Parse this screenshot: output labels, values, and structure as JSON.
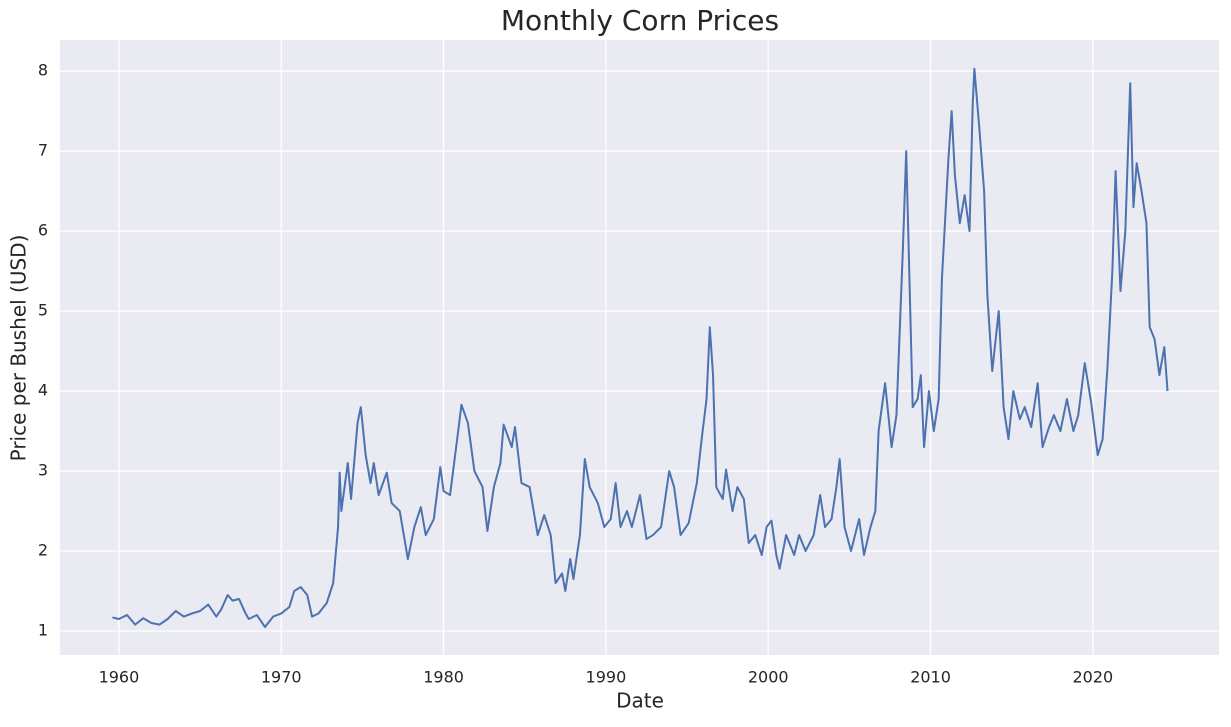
{
  "chart_data": {
    "type": "line",
    "title": "Monthly Corn Prices",
    "x_label": "Date",
    "y_label": "Price per Bushel (USD)",
    "x": [
      1959.6,
      1960,
      1960.5,
      1961,
      1961.5,
      1962,
      1962.5,
      1963,
      1963.5,
      1964,
      1964.5,
      1965,
      1965.5,
      1966,
      1966.3,
      1966.7,
      1967,
      1967.4,
      1967.8,
      1968,
      1968.5,
      1969,
      1969.5,
      1970,
      1970.5,
      1970.8,
      1971.2,
      1971.6,
      1971.9,
      1972.3,
      1972.8,
      1973.2,
      1973.5,
      1973.6,
      1973.7,
      1974.1,
      1974.3,
      1974.7,
      1974.9,
      1975.2,
      1975.5,
      1975.7,
      1976,
      1976.5,
      1976.8,
      1977.3,
      1977.8,
      1978.2,
      1978.6,
      1978.9,
      1979.4,
      1979.8,
      1980,
      1980.4,
      1980.9,
      1981.1,
      1981.5,
      1981.9,
      1982.4,
      1982.7,
      1983.1,
      1983.5,
      1983.7,
      1984.2,
      1984.4,
      1984.8,
      1985.3,
      1985.8,
      1986.2,
      1986.6,
      1986.9,
      1987.3,
      1987.5,
      1987.8,
      1988,
      1988.4,
      1988.7,
      1989,
      1989.5,
      1989.9,
      1990.3,
      1990.6,
      1990.9,
      1991.3,
      1991.6,
      1992.1,
      1992.5,
      1992.9,
      1993.4,
      1993.9,
      1994.2,
      1994.6,
      1995.1,
      1995.6,
      1995.9,
      1996.2,
      1996.4,
      1996.6,
      1996.8,
      1997.2,
      1997.4,
      1997.8,
      1998.1,
      1998.5,
      1998.8,
      1999.2,
      1999.6,
      1999.9,
      2000.2,
      2000.5,
      2000.7,
      2001.1,
      2001.6,
      2001.9,
      2002.3,
      2002.8,
      2003.2,
      2003.5,
      2003.9,
      2004.2,
      2004.4,
      2004.7,
      2005.1,
      2005.6,
      2005.9,
      2006.3,
      2006.6,
      2006.8,
      2007.2,
      2007.6,
      2007.9,
      2008.3,
      2008.5,
      2008.7,
      2008.9,
      2009.2,
      2009.4,
      2009.6,
      2009.9,
      2010.2,
      2010.5,
      2010.7,
      2011.1,
      2011.3,
      2011.5,
      2011.8,
      2012.1,
      2012.4,
      2012.6,
      2012.7,
      2013,
      2013.3,
      2013.5,
      2013.8,
      2014.2,
      2014.5,
      2014.8,
      2015.1,
      2015.5,
      2015.8,
      2016.2,
      2016.6,
      2016.9,
      2017.3,
      2017.6,
      2018,
      2018.4,
      2018.8,
      2019.1,
      2019.5,
      2019.9,
      2020.3,
      2020.6,
      2020.9,
      2021.2,
      2021.4,
      2021.7,
      2022,
      2022.3,
      2022.5,
      2022.7,
      2023,
      2023.3,
      2023.5,
      2023.8,
      2024.1,
      2024.4,
      2024.6
    ],
    "values": [
      1.17,
      1.15,
      1.2,
      1.08,
      1.16,
      1.1,
      1.08,
      1.15,
      1.25,
      1.18,
      1.22,
      1.25,
      1.33,
      1.18,
      1.27,
      1.45,
      1.38,
      1.4,
      1.22,
      1.15,
      1.2,
      1.05,
      1.18,
      1.22,
      1.3,
      1.5,
      1.55,
      1.45,
      1.18,
      1.22,
      1.35,
      1.6,
      2.3,
      2.98,
      2.5,
      3.1,
      2.65,
      3.6,
      3.8,
      3.2,
      2.85,
      3.1,
      2.7,
      2.98,
      2.6,
      2.5,
      1.9,
      2.3,
      2.55,
      2.2,
      2.4,
      3.05,
      2.75,
      2.7,
      3.5,
      3.83,
      3.6,
      3.0,
      2.8,
      2.25,
      2.8,
      3.1,
      3.58,
      3.3,
      3.55,
      2.85,
      2.8,
      2.2,
      2.45,
      2.2,
      1.6,
      1.72,
      1.5,
      1.9,
      1.65,
      2.2,
      3.15,
      2.8,
      2.6,
      2.3,
      2.4,
      2.85,
      2.3,
      2.5,
      2.3,
      2.7,
      2.15,
      2.2,
      2.3,
      3.0,
      2.8,
      2.2,
      2.35,
      2.85,
      3.4,
      3.9,
      4.8,
      4.2,
      2.8,
      2.65,
      3.02,
      2.5,
      2.8,
      2.65,
      2.1,
      2.2,
      1.95,
      2.3,
      2.38,
      1.95,
      1.78,
      2.2,
      1.95,
      2.2,
      2.0,
      2.2,
      2.7,
      2.3,
      2.4,
      2.8,
      3.15,
      2.3,
      2.0,
      2.4,
      1.95,
      2.3,
      2.5,
      3.5,
      4.1,
      3.3,
      3.7,
      5.8,
      7.0,
      5.4,
      3.8,
      3.9,
      4.2,
      3.3,
      4.0,
      3.5,
      3.9,
      5.4,
      6.9,
      7.5,
      6.7,
      6.1,
      6.45,
      6.0,
      7.6,
      8.03,
      7.3,
      6.5,
      5.2,
      4.25,
      5.0,
      3.8,
      3.4,
      4.0,
      3.65,
      3.8,
      3.55,
      4.1,
      3.3,
      3.55,
      3.7,
      3.5,
      3.9,
      3.5,
      3.7,
      4.35,
      3.85,
      3.2,
      3.4,
      4.3,
      5.5,
      6.75,
      5.25,
      6.0,
      7.85,
      6.3,
      6.85,
      6.5,
      6.1,
      4.8,
      4.65,
      4.2,
      4.55,
      4.0
    ],
    "color": "#4c72b0",
    "xlim": [
      1956.37,
      2027.77
    ],
    "ylim": [
      0.7,
      8.39
    ],
    "xticks": [
      1960,
      1970,
      1980,
      1990,
      2000,
      2010,
      2020
    ],
    "yticks": [
      1,
      2,
      3,
      4,
      5,
      6,
      7,
      8
    ],
    "grid": true
  }
}
